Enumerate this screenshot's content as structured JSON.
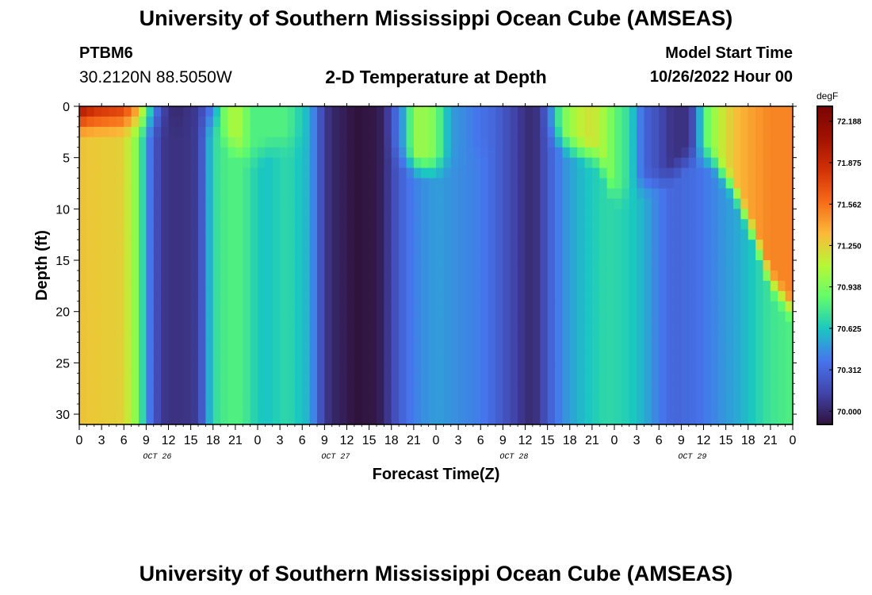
{
  "header": {
    "title": "University of Southern Mississippi Ocean Cube (AMSEAS)",
    "station": "PTBM6",
    "coords": "30.2120N  88.5050W",
    "subtitle": "2-D Temperature at Depth",
    "model_start_label": "Model Start Time",
    "model_start_value": "10/26/2022 Hour 00"
  },
  "footer": {
    "title": "University of Southern Mississippi Ocean Cube (AMSEAS)"
  },
  "chart_data": {
    "type": "heatmap",
    "title": "2-D Temperature at Depth",
    "xlabel": "Forecast Time(Z)",
    "ylabel": "Depth (ft)",
    "x_range_hours": [
      0,
      96
    ],
    "x_ticks": [
      "0",
      "3",
      "6",
      "9",
      "12",
      "15",
      "18",
      "21",
      "0",
      "3",
      "6",
      "9",
      "12",
      "15",
      "18",
      "21",
      "0",
      "3",
      "6",
      "9",
      "12",
      "15",
      "18",
      "21",
      "0",
      "3",
      "6",
      "9",
      "12",
      "15",
      "18",
      "21",
      "0"
    ],
    "day_labels": [
      "OCT 26",
      "OCT 27",
      "OCT 28",
      "OCT 29"
    ],
    "y_range_ft": [
      0,
      31
    ],
    "y_ticks": [
      0,
      5,
      10,
      15,
      20,
      25,
      30
    ],
    "colorbar": {
      "unit": "degF",
      "range": [
        69.9,
        72.3
      ],
      "ticks": [
        "72.188",
        "71.875",
        "71.562",
        "71.250",
        "70.938",
        "70.625",
        "70.312",
        "70.000"
      ]
    },
    "surface_profile_degF": [
      [
        0,
        72.1
      ],
      [
        2,
        71.9
      ],
      [
        6,
        71.8
      ],
      [
        8,
        71.4
      ],
      [
        9,
        70.9
      ],
      [
        10,
        70.5
      ],
      [
        11,
        70.2
      ],
      [
        12,
        70.05
      ],
      [
        13,
        70.0
      ],
      [
        16,
        70.1
      ],
      [
        18,
        70.4
      ],
      [
        19,
        70.8
      ],
      [
        20,
        71.0
      ],
      [
        21,
        71.1
      ],
      [
        22,
        71.0
      ],
      [
        23,
        70.8
      ],
      [
        25,
        70.8
      ],
      [
        28,
        70.8
      ],
      [
        31,
        70.55
      ],
      [
        32,
        70.3
      ],
      [
        33,
        70.1
      ],
      [
        34,
        70.0
      ],
      [
        36,
        69.95
      ],
      [
        37,
        69.9
      ],
      [
        40,
        69.93
      ],
      [
        41,
        70.0
      ],
      [
        42,
        70.2
      ],
      [
        44,
        70.6
      ],
      [
        45,
        71.0
      ],
      [
        47,
        71.0
      ],
      [
        48,
        70.9
      ],
      [
        49,
        70.7
      ],
      [
        50,
        70.5
      ],
      [
        53,
        70.4
      ],
      [
        56,
        70.3
      ],
      [
        59,
        70.1
      ],
      [
        61,
        70.0
      ],
      [
        62,
        70.1
      ],
      [
        63,
        70.3
      ],
      [
        64,
        70.6
      ],
      [
        65,
        70.9
      ],
      [
        67,
        71.1
      ],
      [
        69,
        71.2
      ],
      [
        71,
        71.0
      ],
      [
        72,
        70.85
      ],
      [
        74,
        70.7
      ],
      [
        75,
        70.5
      ],
      [
        76,
        70.3
      ],
      [
        77,
        70.25
      ],
      [
        79,
        70.1
      ],
      [
        80,
        70.05
      ],
      [
        82,
        70.05
      ],
      [
        83,
        70.3
      ],
      [
        84,
        70.8
      ],
      [
        86,
        71.1
      ],
      [
        88,
        71.3
      ],
      [
        90,
        71.4
      ],
      [
        93,
        71.5
      ],
      [
        96,
        71.5
      ]
    ],
    "deep_profile_degF": [
      [
        0,
        71.3
      ],
      [
        6,
        71.25
      ],
      [
        8,
        70.9
      ],
      [
        9,
        70.5
      ],
      [
        10,
        70.25
      ],
      [
        11,
        70.1
      ],
      [
        12,
        70.05
      ],
      [
        14,
        70.05
      ],
      [
        16,
        70.1
      ],
      [
        17,
        70.4
      ],
      [
        18,
        70.7
      ],
      [
        20,
        70.8
      ],
      [
        22,
        70.8
      ],
      [
        23,
        70.7
      ],
      [
        25,
        70.6
      ],
      [
        28,
        70.7
      ],
      [
        31,
        70.55
      ],
      [
        32,
        70.3
      ],
      [
        33,
        70.1
      ],
      [
        34,
        70.0
      ],
      [
        36,
        69.95
      ],
      [
        37,
        69.9
      ],
      [
        40,
        69.93
      ],
      [
        41,
        70.0
      ],
      [
        42,
        70.15
      ],
      [
        44,
        70.35
      ],
      [
        46,
        70.45
      ],
      [
        48,
        70.5
      ],
      [
        51,
        70.45
      ],
      [
        54,
        70.4
      ],
      [
        56,
        70.3
      ],
      [
        59,
        70.1
      ],
      [
        61,
        70.0
      ],
      [
        62,
        70.1
      ],
      [
        63,
        70.25
      ],
      [
        65,
        70.45
      ],
      [
        68,
        70.6
      ],
      [
        71,
        70.7
      ],
      [
        74,
        70.65
      ],
      [
        76,
        70.55
      ],
      [
        78,
        70.4
      ],
      [
        80,
        70.3
      ],
      [
        83,
        70.35
      ],
      [
        86,
        70.45
      ],
      [
        89,
        70.55
      ],
      [
        91,
        70.65
      ],
      [
        93,
        70.75
      ],
      [
        96,
        70.8
      ]
    ],
    "surface_layer_depth_ft": [
      [
        0,
        0
      ],
      [
        18,
        0
      ],
      [
        19,
        3
      ],
      [
        23,
        5
      ],
      [
        26,
        4
      ],
      [
        38,
        2
      ],
      [
        43,
        5
      ],
      [
        46,
        6
      ],
      [
        48,
        6
      ],
      [
        62,
        2
      ],
      [
        66,
        4
      ],
      [
        70,
        5
      ],
      [
        72,
        9
      ],
      [
        75,
        8
      ],
      [
        79,
        7
      ],
      [
        82,
        5
      ],
      [
        85,
        5
      ],
      [
        88,
        8
      ],
      [
        91,
        13
      ],
      [
        93,
        17
      ],
      [
        96,
        20
      ]
    ]
  }
}
